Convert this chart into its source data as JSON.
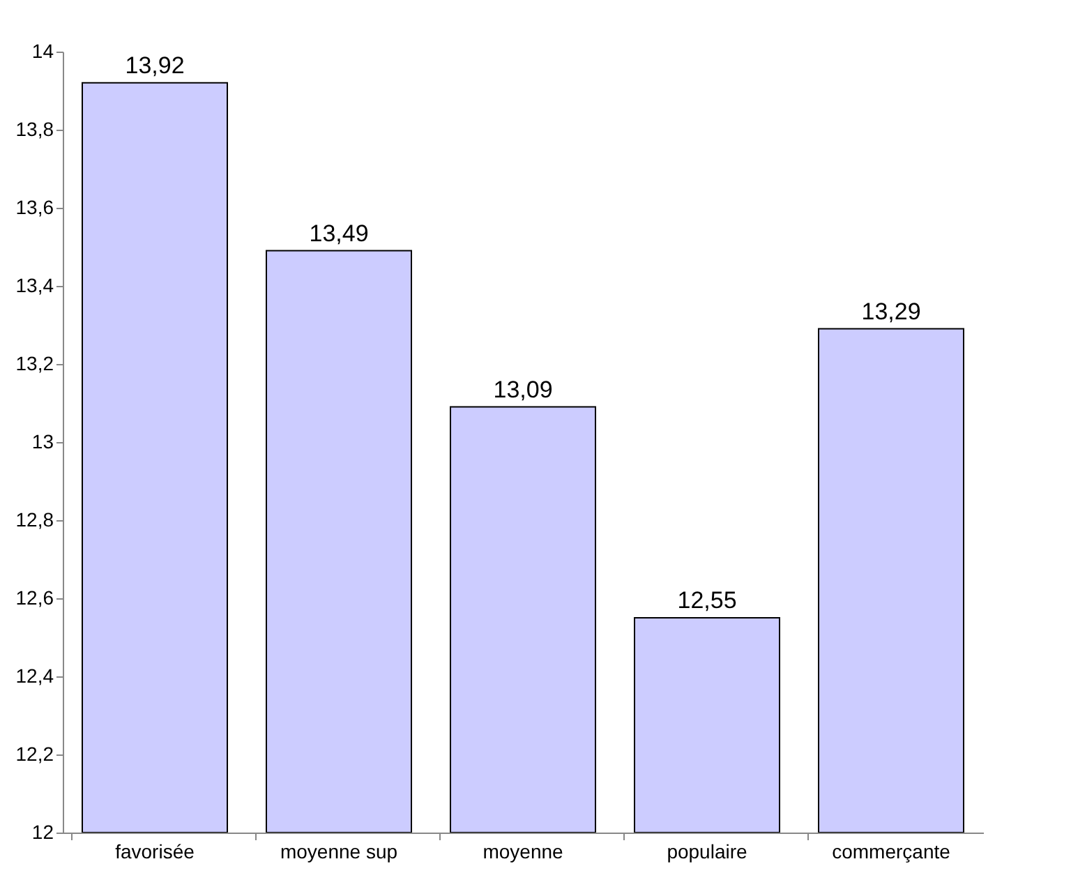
{
  "chart_data": {
    "type": "bar",
    "categories": [
      "favorisée",
      "moyenne sup",
      "moyenne",
      "populaire",
      "commerçante"
    ],
    "values": [
      13.92,
      13.49,
      13.09,
      12.55,
      13.29
    ],
    "value_labels": [
      "13,92",
      "13,49",
      "13,09",
      "12,55",
      "13,29"
    ],
    "color": "#ccccff",
    "ylim": [
      12,
      14
    ],
    "yticks": [
      12,
      {
        "value": 12.2,
        "label": "12,2"
      },
      {
        "value": 12.4,
        "label": "12,4"
      },
      {
        "value": 12.6,
        "label": "12,6"
      },
      {
        "value": 12.8,
        "label": "12,8"
      },
      13,
      {
        "value": 13.2,
        "label": "13,2"
      },
      {
        "value": 13.4,
        "label": "13,4"
      },
      {
        "value": 13.6,
        "label": "13,6"
      },
      {
        "value": 13.8,
        "label": "13,8"
      },
      14
    ],
    "grid": false
  }
}
